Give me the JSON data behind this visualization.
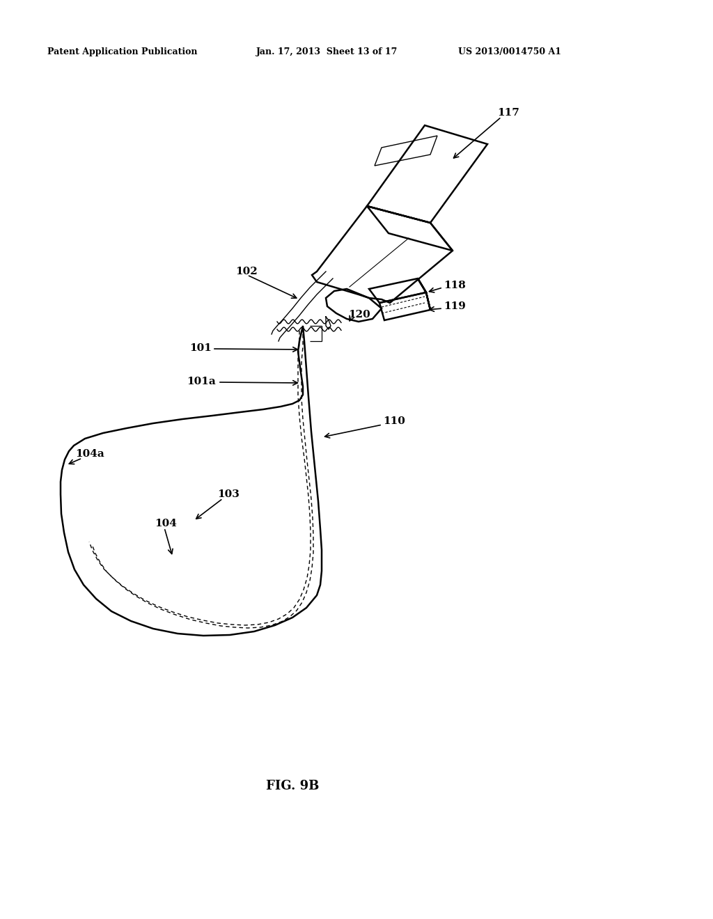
{
  "background_color": "#ffffff",
  "header_left": "Patent Application Publication",
  "header_mid": "Jan. 17, 2013  Sheet 13 of 17",
  "header_right": "US 2013/0014750 A1",
  "figure_label": "FIG. 9B",
  "line_color": "#000000",
  "line_width": 1.8,
  "thin_lw": 1.0,
  "dashed_lw": 1.0
}
